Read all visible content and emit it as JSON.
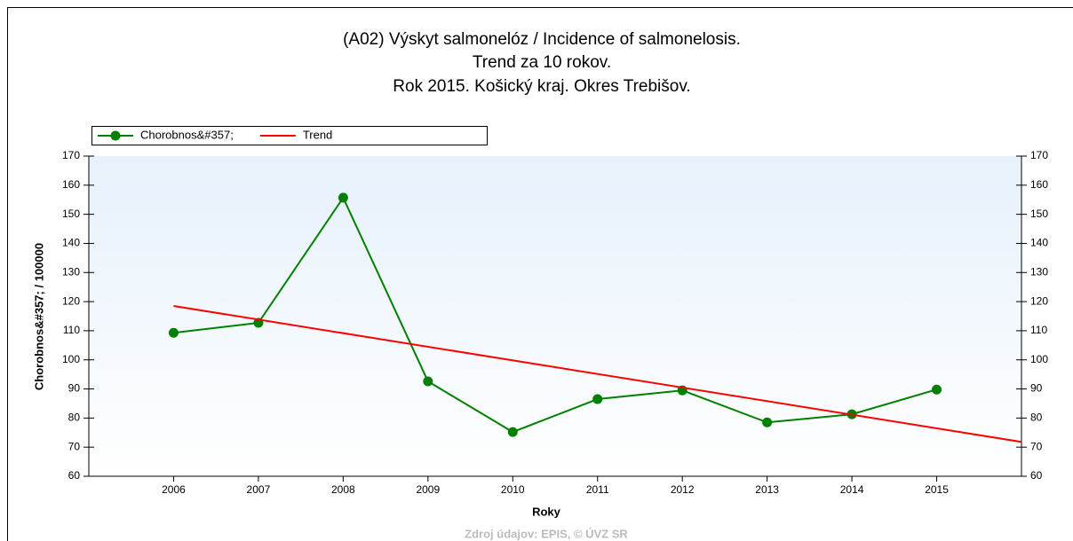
{
  "chart_data": {
    "type": "line",
    "title": [
      "(A02) Výskyt salmonelóz / Incidence of salmonelosis.",
      "Trend za 10 rokov.",
      "Rok 2015. Košický kraj. Okres Trebišov."
    ],
    "x_label": "Roky",
    "y_label": "Chorobnos&#357; / 100000",
    "source": "Zdroj údajov: EPIS, © ÚVZ SR",
    "x": [
      2006,
      2007,
      2008,
      2009,
      2010,
      2011,
      2012,
      2013,
      2014,
      2015
    ],
    "series": [
      {
        "name": "Chorobnos&#357;",
        "color": "#008000",
        "marker": true,
        "values": [
          109.3,
          112.7,
          155.7,
          92.6,
          75.2,
          86.5,
          89.5,
          78.5,
          81.3,
          89.8
        ]
      },
      {
        "name": "Trend",
        "color": "#ff0000",
        "marker": false,
        "x": [
          2006,
          2016
        ],
        "values": [
          118.5,
          71.8
        ]
      }
    ],
    "xlim": [
      2005,
      2016
    ],
    "xticks": [
      2006,
      2007,
      2008,
      2009,
      2010,
      2011,
      2012,
      2013,
      2014,
      2015
    ],
    "ylim": [
      60,
      170
    ],
    "yticks": [
      60,
      70,
      80,
      90,
      100,
      110,
      120,
      130,
      140,
      150,
      160,
      170
    ],
    "y2ticks": [
      60,
      70,
      80,
      90,
      100,
      110,
      120,
      130,
      140,
      150,
      160,
      170
    ]
  }
}
